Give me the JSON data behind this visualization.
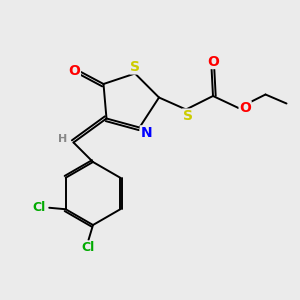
{
  "background_color": "#ebebeb",
  "bond_color": "#000000",
  "atom_colors": {
    "S": "#cccc00",
    "N": "#0000ff",
    "O": "#ff0000",
    "Cl": "#00aa00",
    "H": "#888888",
    "C": "#000000"
  },
  "figsize": [
    3.0,
    3.0
  ],
  "dpi": 100
}
